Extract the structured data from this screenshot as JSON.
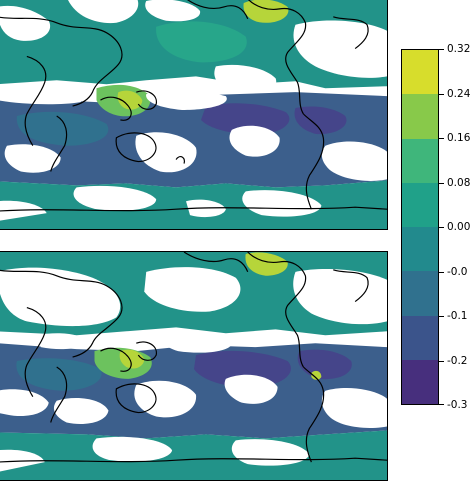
{
  "colorbar": {
    "ticks": [
      "0.32",
      "0.24",
      "0.16",
      "0.08",
      "0.00",
      "-0.0",
      "-0.1",
      "-0.2",
      "-0.3"
    ],
    "band_colors": [
      "#d7dd2c",
      "#88c94a",
      "#3fb67b",
      "#20a189",
      "#228a8d",
      "#30718e",
      "#3b548b",
      "#472f7d"
    ]
  },
  "panels": [
    {
      "name": "top-map-panel"
    },
    {
      "name": "bottom-map-panel"
    }
  ],
  "fill_colors": {
    "teal_light": "#27a68a",
    "teal": "#229389",
    "blue_teal": "#2f7a8e",
    "blue": "#3c5f8c",
    "indigo": "#45458a",
    "green": "#6cc25e",
    "yellow_green": "#b6d53a"
  }
}
